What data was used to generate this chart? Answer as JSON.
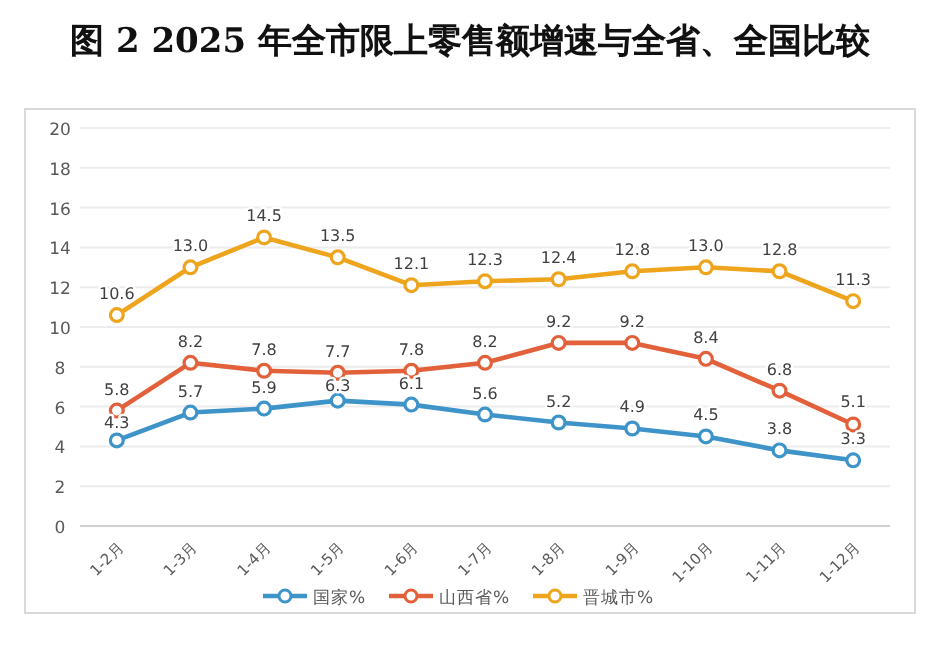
{
  "chart_data": {
    "type": "line",
    "title": "图 2  2025 年全市限上零售额增速与全省、全国比较",
    "categories": [
      "1-2月",
      "1-3月",
      "1-4月",
      "1-5月",
      "1-6月",
      "1-7月",
      "1-8月",
      "1-9月",
      "1-10月",
      "1-11月",
      "1-12月"
    ],
    "series": [
      {
        "name": "国家%",
        "color": "#3e94c8",
        "values": [
          4.3,
          5.7,
          5.9,
          6.3,
          6.1,
          5.6,
          5.2,
          4.9,
          4.5,
          3.8,
          3.3
        ],
        "value_labels": [
          "4.3",
          "5.7",
          "5.9",
          "6.3",
          "6.1",
          "5.6",
          "5.2",
          "4.9",
          "4.5",
          "3.8",
          "3.3"
        ]
      },
      {
        "name": "山西省%",
        "color": "#e2603a",
        "values": [
          5.8,
          8.2,
          7.8,
          7.7,
          7.8,
          8.2,
          9.2,
          9.2,
          8.4,
          6.8,
          5.1
        ],
        "value_labels": [
          "5.8",
          "8.2",
          "7.8",
          "7.7",
          "7.8",
          "8.2",
          "9.2",
          "9.2",
          "8.4",
          "6.8",
          "5.1"
        ]
      },
      {
        "name": "晋城市%",
        "color": "#eea41c",
        "values": [
          10.6,
          13.0,
          14.5,
          13.5,
          12.1,
          12.3,
          12.4,
          12.8,
          13.0,
          12.8,
          11.3
        ],
        "value_labels": [
          "10.6",
          "13.0",
          "14.5",
          "13.5",
          "12.1",
          "12.3",
          "12.4",
          "12.8",
          "13.0",
          "12.8",
          "11.3"
        ]
      }
    ],
    "ylim": [
      0,
      20
    ],
    "yticks": [
      0,
      2,
      4,
      6,
      8,
      10,
      12,
      14,
      16,
      18,
      20
    ],
    "grid": "y",
    "legend": "bottom",
    "marker": "circle",
    "line_style": "solid"
  }
}
